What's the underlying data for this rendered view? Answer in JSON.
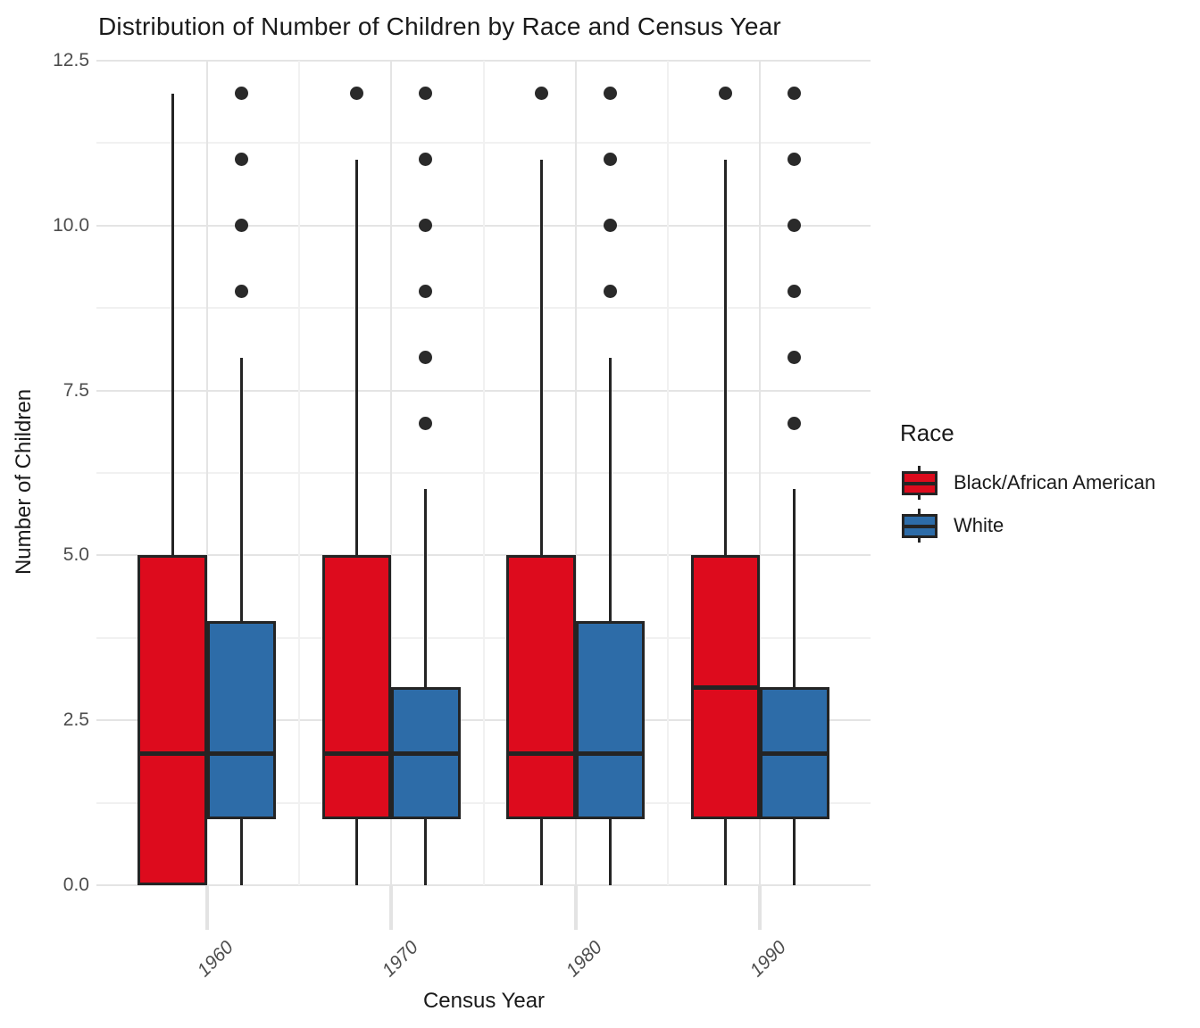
{
  "title": "Distribution of Number of Children by Race and Census Year",
  "axes": {
    "x": {
      "title": "Census Year",
      "categories": [
        "1960",
        "1970",
        "1980",
        "1990"
      ]
    },
    "y": {
      "title": "Number of Children",
      "tick_labels": [
        "0.0",
        "2.5",
        "5.0",
        "7.5",
        "10.0",
        "12.5"
      ],
      "tick_values": [
        0,
        2.5,
        5,
        7.5,
        10,
        12.5
      ],
      "minor_values": [
        1.25,
        3.75,
        6.25,
        8.75,
        11.25
      ],
      "min": 0,
      "max": 12.5
    }
  },
  "legend": {
    "title": "Race",
    "entries": [
      {
        "label": "Black/African American",
        "color": "#dd0b1d"
      },
      {
        "label": "White",
        "color": "#2d6ca8"
      }
    ]
  },
  "colors": {
    "box_outline": "#242424",
    "outlier_dot": "#2a2a2a",
    "major_grid": "#e4e4e4",
    "minor_grid": "#f1f1f1",
    "tick_text": "#4d4d4d"
  },
  "chart_data": {
    "type": "boxplot",
    "title": "Distribution of Number of Children by Race and Census Year",
    "xlabel": "Census Year",
    "ylabel": "Number of Children",
    "ylim": [
      0,
      12.5
    ],
    "grid": "on",
    "legend_position": "right",
    "categories": [
      "1960",
      "1970",
      "1980",
      "1990"
    ],
    "series": [
      {
        "name": "Black/African American",
        "color": "#dd0b1d",
        "boxes": [
          {
            "category": "1960",
            "whisker_low": 0,
            "q1": 0,
            "median": 2,
            "q3": 5,
            "whisker_high": 12,
            "outliers": []
          },
          {
            "category": "1970",
            "whisker_low": 0,
            "q1": 1,
            "median": 2,
            "q3": 5,
            "whisker_high": 11,
            "outliers": [
              12
            ]
          },
          {
            "category": "1980",
            "whisker_low": 0,
            "q1": 1,
            "median": 2,
            "q3": 5,
            "whisker_high": 11,
            "outliers": [
              12
            ]
          },
          {
            "category": "1990",
            "whisker_low": 0,
            "q1": 1,
            "median": 3,
            "q3": 5,
            "whisker_high": 11,
            "outliers": [
              12
            ]
          }
        ]
      },
      {
        "name": "White",
        "color": "#2d6ca8",
        "boxes": [
          {
            "category": "1960",
            "whisker_low": 0,
            "q1": 1,
            "median": 2,
            "q3": 4,
            "whisker_high": 8,
            "outliers": [
              9,
              10,
              11,
              12
            ]
          },
          {
            "category": "1970",
            "whisker_low": 0,
            "q1": 1,
            "median": 2,
            "q3": 3,
            "whisker_high": 6,
            "outliers": [
              7,
              8,
              9,
              10,
              11,
              12
            ]
          },
          {
            "category": "1980",
            "whisker_low": 0,
            "q1": 1,
            "median": 2,
            "q3": 4,
            "whisker_high": 8,
            "outliers": [
              9,
              10,
              11,
              12
            ]
          },
          {
            "category": "1990",
            "whisker_low": 0,
            "q1": 1,
            "median": 2,
            "q3": 3,
            "whisker_high": 6,
            "outliers": [
              7,
              8,
              9,
              10,
              11,
              12
            ]
          }
        ]
      }
    ]
  }
}
